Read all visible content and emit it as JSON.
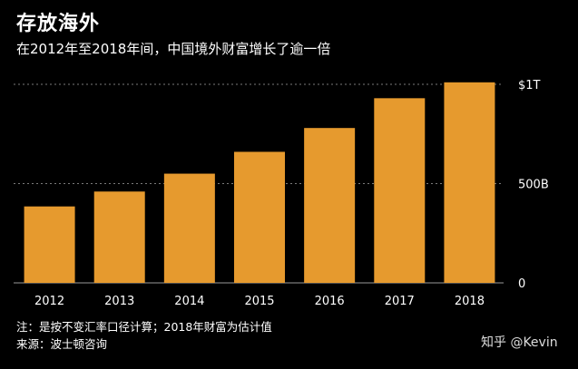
{
  "header": {
    "title": "存放海外",
    "subtitle": "在2012年至2018年间，中国境外财富增长了逾一倍"
  },
  "footer": {
    "note": "注：是按不变汇率口径计算；2018年财富为估计值",
    "source": "来源：波士顿咨询"
  },
  "watermark": "知乎 @Kevin",
  "colors": {
    "bar": "#E69A2E",
    "background": "#000000",
    "grid": "#7a7a7a",
    "text": "#ffffff"
  },
  "chart_data": {
    "type": "bar",
    "categories": [
      "2012",
      "2013",
      "2014",
      "2015",
      "2016",
      "2017",
      "2018"
    ],
    "values": [
      385,
      460,
      550,
      660,
      780,
      930,
      1010
    ],
    "unit": "billion USD",
    "yticks": [
      {
        "value": 0,
        "label": "0"
      },
      {
        "value": 500,
        "label": "500B"
      },
      {
        "value": 1000,
        "label": "$1T"
      }
    ],
    "ylim": [
      0,
      1000
    ],
    "grid": true,
    "grid_style": "dotted",
    "title": "存放海外",
    "subtitle": "在2012年至2018年间，中国境外财富增长了逾一倍",
    "xlabel": "",
    "ylabel": ""
  }
}
